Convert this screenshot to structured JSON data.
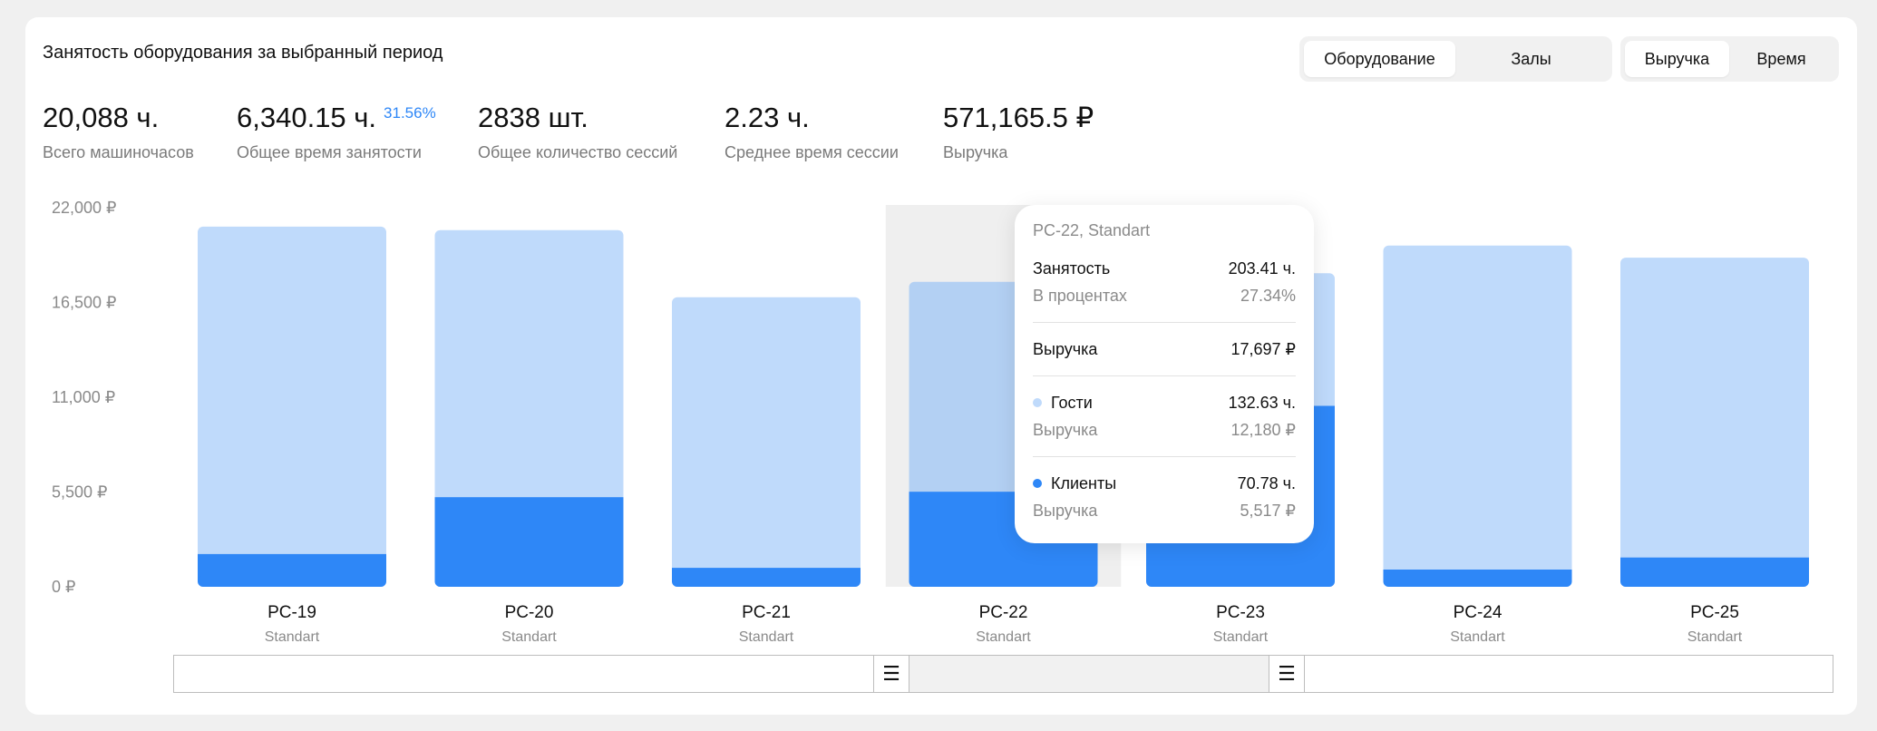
{
  "title": "Занятость оборудования за выбранный период",
  "segment_group_1": {
    "options": [
      "Оборудование",
      "Залы"
    ],
    "active": 0
  },
  "segment_group_2": {
    "options": [
      "Выручка",
      "Время"
    ],
    "active": 0
  },
  "kpis": [
    {
      "value": "20,088 ч.",
      "label": "Всего машиночасов"
    },
    {
      "value": "6,340.15 ч.",
      "badge": "31.56%",
      "label": "Общее время занятости"
    },
    {
      "value": "2838 шт.",
      "label": "Общее количество сессий"
    },
    {
      "value": "2.23 ч.",
      "label": "Среднее время сессии"
    },
    {
      "value": "571,165.5 ₽",
      "label": "Выручка"
    }
  ],
  "colors": {
    "guests": "#bfdafb",
    "clients": "#2e87f7",
    "hover_band": "#efefef",
    "guests_hover": "#b3d0f3"
  },
  "chart_data": {
    "type": "bar",
    "stacked": true,
    "categories": [
      "PC-19",
      "PC-20",
      "PC-21",
      "PC-22",
      "PC-23",
      "PC-24",
      "PC-25"
    ],
    "subcategories": [
      "Standart",
      "Standart",
      "Standart",
      "Standart",
      "Standart",
      "Standart",
      "Standart"
    ],
    "series": [
      {
        "name": "Клиенты",
        "values": [
          1900,
          5200,
          1100,
          5517,
          10500,
          1000,
          1700
        ]
      },
      {
        "name": "Гости",
        "values": [
          19000,
          15500,
          15700,
          12180,
          7700,
          18800,
          17400
        ]
      }
    ],
    "y_ticks": [
      "22,000 ₽",
      "16,500 ₽",
      "11,000 ₽",
      "5,500 ₽",
      "0 ₽"
    ],
    "y_tick_values": [
      22000,
      16500,
      11000,
      5500,
      0
    ],
    "ylim": [
      0,
      22000
    ],
    "highlighted_index": 3,
    "grid": false,
    "legend": "none"
  },
  "tooltip": {
    "header": "PC-22, Standart",
    "occupancy_label": "Занятость",
    "occupancy_value": "203.41 ч.",
    "percent_label": "В процентах",
    "percent_value": "27.34%",
    "revenue_label": "Выручка",
    "revenue_value": "17,697 ₽",
    "guests_label": "Гости",
    "guests_value": "132.63 ч.",
    "guests_revenue_label": "Выручка",
    "guests_revenue_value": "12,180 ₽",
    "clients_label": "Клиенты",
    "clients_value": "70.78 ч.",
    "clients_revenue_label": "Выручка",
    "clients_revenue_value": "5,517 ₽"
  },
  "scroller": {
    "handle_icon": "☰"
  }
}
